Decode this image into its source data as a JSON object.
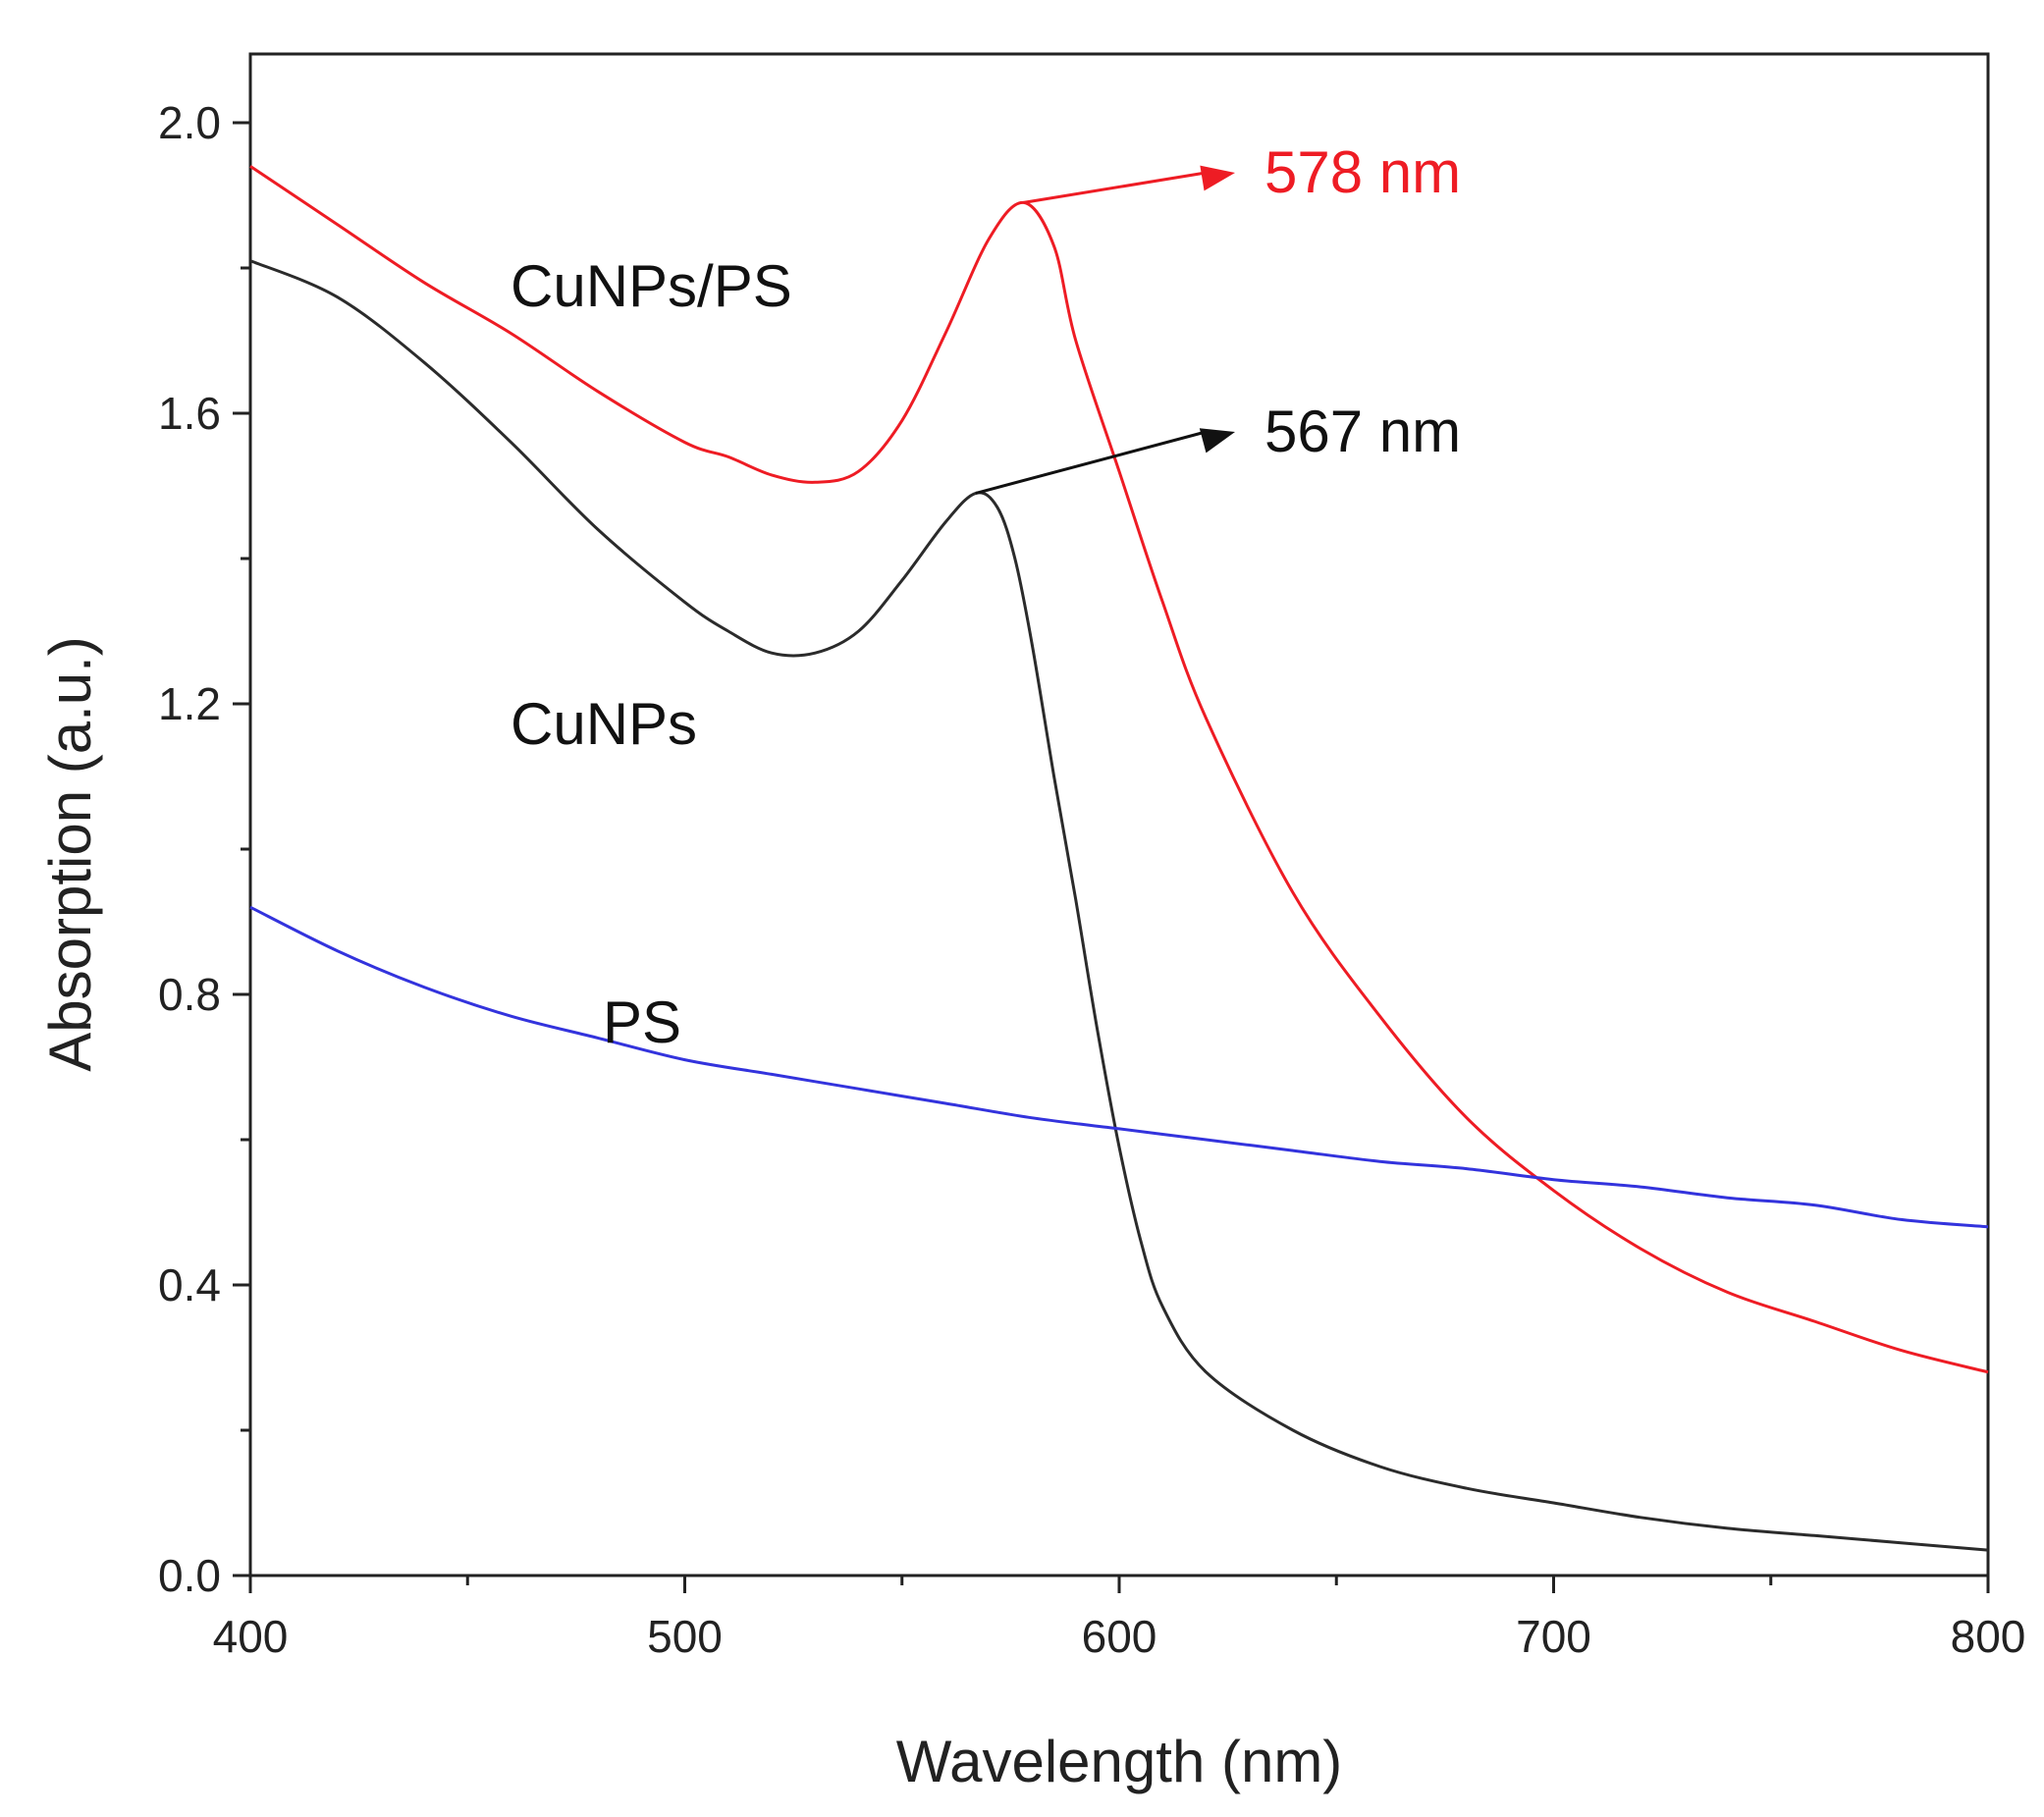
{
  "chart_data": {
    "type": "line",
    "title": "",
    "xlabel": "Wavelength (nm)",
    "ylabel": "Absorption (a.u.)",
    "xlim": [
      400,
      800
    ],
    "ylim": [
      0.0,
      2.1
    ],
    "xticks": [
      400,
      500,
      600,
      700,
      800
    ],
    "xtick_labels": [
      "400",
      "500",
      "600",
      "700",
      "800"
    ],
    "yticks": [
      0.0,
      0.4,
      0.8,
      1.2,
      1.6,
      2.0
    ],
    "ytick_labels": [
      "0.0",
      "0.4",
      "0.8",
      "1.2",
      "1.6",
      "2.0"
    ],
    "grid": false,
    "series": [
      {
        "name": "CuNPs/PS",
        "color": "#ee1c24",
        "x": [
          400,
          420,
          440,
          460,
          480,
          500,
          510,
          520,
          530,
          540,
          550,
          560,
          570,
          578,
          585,
          590,
          600,
          610,
          620,
          640,
          660,
          680,
          700,
          720,
          740,
          760,
          780,
          800
        ],
        "y": [
          1.94,
          1.86,
          1.78,
          1.71,
          1.63,
          1.56,
          1.54,
          1.515,
          1.505,
          1.52,
          1.59,
          1.71,
          1.84,
          1.89,
          1.83,
          1.7,
          1.52,
          1.34,
          1.18,
          0.94,
          0.77,
          0.63,
          0.53,
          0.45,
          0.39,
          0.35,
          0.31,
          0.28
        ]
      },
      {
        "name": "CuNPs",
        "color": "#2b2b2b",
        "x": [
          400,
          420,
          440,
          460,
          480,
          500,
          510,
          520,
          530,
          540,
          550,
          560,
          567,
          572,
          576,
          580,
          585,
          590,
          595,
          600,
          605,
          610,
          620,
          640,
          660,
          680,
          700,
          720,
          740,
          760,
          780,
          800
        ],
        "y": [
          1.81,
          1.76,
          1.67,
          1.56,
          1.44,
          1.34,
          1.3,
          1.27,
          1.27,
          1.3,
          1.37,
          1.45,
          1.49,
          1.47,
          1.4,
          1.28,
          1.1,
          0.93,
          0.75,
          0.59,
          0.46,
          0.37,
          0.28,
          0.2,
          0.15,
          0.12,
          0.1,
          0.08,
          0.065,
          0.055,
          0.045,
          0.035
        ]
      },
      {
        "name": "PS",
        "color": "#3333dd",
        "x": [
          400,
          420,
          440,
          460,
          480,
          500,
          520,
          540,
          560,
          580,
          600,
          620,
          640,
          660,
          680,
          700,
          720,
          740,
          760,
          780,
          800
        ],
        "y": [
          0.92,
          0.86,
          0.81,
          0.77,
          0.74,
          0.71,
          0.69,
          0.67,
          0.65,
          0.63,
          0.615,
          0.6,
          0.585,
          0.57,
          0.56,
          0.545,
          0.535,
          0.52,
          0.51,
          0.49,
          0.48
        ]
      }
    ],
    "annotations": [
      {
        "text": "578 nm",
        "series": "CuNPs/PS",
        "peak_x": 578,
        "peak_y": 1.89,
        "color": "#ee1c24"
      },
      {
        "text": "567 nm",
        "series": "CuNPs",
        "peak_x": 567,
        "peak_y": 1.49,
        "color": "#111111"
      }
    ]
  }
}
